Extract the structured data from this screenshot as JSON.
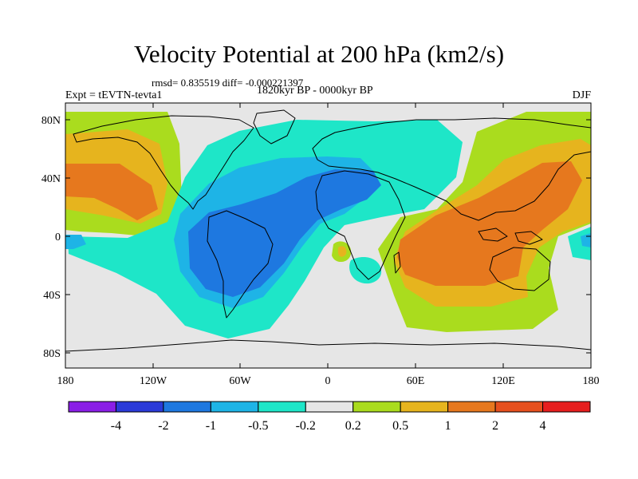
{
  "header": {
    "title": "Velocity Potential at 200 hPa (km2/s)",
    "stats": "rmsd= 0.835519 diff= -0.000221397",
    "period": "1820kyr BP - 0000kyr BP",
    "experiment": "Expt = tEVTN-tevta1",
    "season": "DJF"
  },
  "axes": {
    "lat_ticks": [
      "80N",
      "40N",
      "0",
      "40S",
      "80S"
    ],
    "lon_ticks": [
      "180",
      "120W",
      "60W",
      "0",
      "60E",
      "120E",
      "180"
    ]
  },
  "colorbar": {
    "colors": [
      "#8a1ee6",
      "#2a3ad8",
      "#1e78e0",
      "#1eb4e6",
      "#1ee6c8",
      "#e6e6e6",
      "#aadc1e",
      "#e6b41e",
      "#e6781e",
      "#e6501e",
      "#e61e1e"
    ],
    "labels": [
      "-4",
      "-2",
      "-1",
      "-0.5",
      "-0.2",
      "0.2",
      "0.5",
      "1",
      "2",
      "4"
    ]
  }
}
